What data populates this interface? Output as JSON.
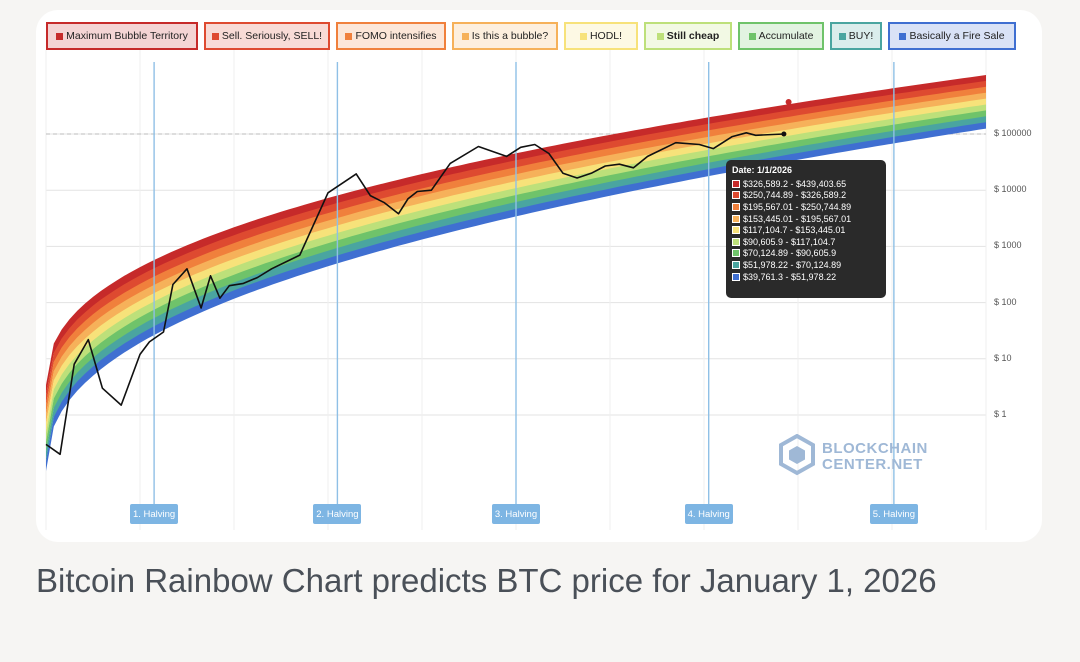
{
  "chart_data": {
    "type": "area",
    "title": "",
    "xlabel": "",
    "ylabel": "",
    "y_scale": "log",
    "y_ticks": [
      "$ 1",
      "$ 10",
      "$ 100",
      "$ 1000",
      "$ 10000",
      "$ 100000"
    ],
    "y_tick_values": [
      1,
      10,
      100,
      1000,
      10000,
      100000
    ],
    "grid": true,
    "legend_placement": "top",
    "bands": [
      {
        "name": "Maximum Bubble Territory",
        "color": "#c62a2a"
      },
      {
        "name": "Sell. Seriously, SELL!",
        "color": "#de4a30"
      },
      {
        "name": "FOMO intensifies",
        "color": "#f0803c"
      },
      {
        "name": "Is this a bubble?",
        "color": "#f6b15a"
      },
      {
        "name": "HODL!",
        "color": "#f7e27a"
      },
      {
        "name": "Still cheap",
        "color": "#bde07a"
      },
      {
        "name": "Accumulate",
        "color": "#6fc36a"
      },
      {
        "name": "BUY!",
        "color": "#4aa5a0"
      },
      {
        "name": "Basically a Fire Sale",
        "color": "#3f6fd1"
      }
    ],
    "halvings": [
      "1. Halving",
      "2. Halving",
      "3. Halving",
      "4. Halving",
      "5. Halving"
    ],
    "tooltip": {
      "date": "Date: 1/1/2026",
      "ranges": [
        "$326,589.2 - $439,403.65",
        "$250,744.89 - $326,589.2",
        "$195,567.01 - $250,744.89",
        "$153,445.01 - $195,567.01",
        "$117,104.7 - $153,445.01",
        "$90,605.9 - $117,104.7",
        "$70,124.89 - $90,605.9",
        "$51,978.22 - $70,124.89",
        "$39,761.3 - $51,978.22"
      ]
    },
    "price_series": {
      "name": "",
      "t": [
        0,
        0.015,
        0.03,
        0.045,
        0.06,
        0.08,
        0.1,
        0.11,
        0.125,
        0.135,
        0.15,
        0.165,
        0.175,
        0.185,
        0.195,
        0.21,
        0.225,
        0.24,
        0.27,
        0.3,
        0.33,
        0.345,
        0.36,
        0.375,
        0.385,
        0.395,
        0.41,
        0.43,
        0.46,
        0.49,
        0.505,
        0.52,
        0.535,
        0.55,
        0.565,
        0.58,
        0.595,
        0.61,
        0.625,
        0.64,
        0.67,
        0.695,
        0.71,
        0.73,
        0.745,
        0.755,
        0.785
      ],
      "v": [
        0.3,
        0.2,
        8,
        22,
        3,
        1.5,
        12,
        20,
        30,
        210,
        400,
        80,
        300,
        120,
        200,
        220,
        280,
        400,
        700,
        9000,
        19500,
        8000,
        6000,
        3800,
        7000,
        9500,
        10000,
        30000,
        60000,
        40000,
        58000,
        65000,
        45000,
        20000,
        16500,
        20000,
        27000,
        29000,
        25000,
        40000,
        70000,
        65000,
        55000,
        90000,
        105000,
        95000,
        100000
      ]
    },
    "watermark": {
      "line1": "BLOCKCHAIN",
      "line2": "CENTER.NET"
    }
  },
  "caption": "Bitcoin Rainbow Chart predicts BTC price for January 1, 2026"
}
